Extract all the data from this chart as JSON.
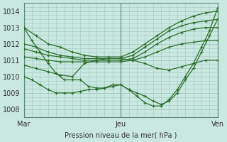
{
  "bg_color": "#c8e8e0",
  "grid_color": "#a0c8c0",
  "line_color": "#2d6e2d",
  "xlabel": "Pression niveau de la mer( hPa )",
  "xtick_labels": [
    "Mar",
    "Jeu",
    "Ven"
  ],
  "xtick_positions": [
    0,
    48,
    96
  ],
  "xlim": [
    0,
    96
  ],
  "ylim": [
    1007.5,
    1014.5
  ],
  "yticks": [
    1008,
    1009,
    1010,
    1011,
    1012,
    1013,
    1014
  ],
  "series": [
    {
      "x": [
        0,
        6,
        12,
        18,
        24,
        30,
        36,
        42,
        48,
        54,
        60,
        66,
        72,
        78,
        84,
        90,
        96
      ],
      "y": [
        1013.0,
        1012.5,
        1012.0,
        1011.8,
        1011.5,
        1011.3,
        1011.2,
        1011.2,
        1011.2,
        1011.5,
        1012.0,
        1012.5,
        1013.0,
        1013.4,
        1013.7,
        1013.9,
        1014.0
      ]
    },
    {
      "x": [
        0,
        6,
        12,
        18,
        24,
        30,
        36,
        42,
        48,
        54,
        60,
        66,
        72,
        78,
        84,
        90,
        96
      ],
      "y": [
        1012.0,
        1011.8,
        1011.5,
        1011.3,
        1011.2,
        1011.1,
        1011.1,
        1011.1,
        1011.1,
        1011.3,
        1011.8,
        1012.3,
        1012.8,
        1013.1,
        1013.3,
        1013.4,
        1013.5
      ]
    },
    {
      "x": [
        0,
        6,
        12,
        18,
        24,
        30,
        36,
        42,
        48,
        54,
        60,
        66,
        72,
        78,
        84,
        90,
        96
      ],
      "y": [
        1011.7,
        1011.5,
        1011.3,
        1011.2,
        1011.1,
        1011.0,
        1011.0,
        1011.0,
        1011.0,
        1011.1,
        1011.5,
        1012.0,
        1012.4,
        1012.7,
        1012.9,
        1013.0,
        1013.0
      ]
    },
    {
      "x": [
        0,
        6,
        12,
        18,
        24,
        30,
        36,
        42,
        48,
        54,
        60,
        66,
        72,
        78,
        84,
        90,
        96
      ],
      "y": [
        1011.2,
        1011.1,
        1011.0,
        1010.9,
        1010.9,
        1010.9,
        1010.9,
        1010.9,
        1010.9,
        1011.0,
        1011.2,
        1011.5,
        1011.8,
        1012.0,
        1012.1,
        1012.2,
        1012.2
      ]
    },
    {
      "x": [
        0,
        6,
        12,
        18,
        24,
        30,
        36,
        42,
        48,
        54,
        60,
        66,
        72,
        78,
        84,
        90,
        96
      ],
      "y": [
        1010.7,
        1010.5,
        1010.3,
        1010.1,
        1010.0,
        1010.8,
        1011.0,
        1011.1,
        1011.1,
        1011.0,
        1010.8,
        1010.5,
        1010.4,
        1010.6,
        1010.8,
        1011.0,
        1011.0
      ]
    },
    {
      "x": [
        0,
        4,
        8,
        12,
        16,
        20,
        24,
        28,
        32,
        36,
        40,
        44,
        48,
        52,
        56,
        60,
        64,
        68,
        72,
        76,
        80,
        84,
        88,
        92,
        96
      ],
      "y": [
        1013.0,
        1012.2,
        1011.5,
        1010.8,
        1010.2,
        1009.8,
        1009.8,
        1009.8,
        1009.4,
        1009.3,
        1009.3,
        1009.5,
        1009.5,
        1009.2,
        1009.0,
        1008.8,
        1008.5,
        1008.3,
        1008.5,
        1009.0,
        1009.8,
        1010.5,
        1011.5,
        1012.5,
        1013.5
      ]
    },
    {
      "x": [
        0,
        4,
        8,
        12,
        16,
        20,
        24,
        28,
        32,
        36,
        40,
        44,
        48,
        52,
        56,
        60,
        64,
        68,
        72,
        76,
        80,
        84,
        88,
        92,
        96
      ],
      "y": [
        1010.0,
        1009.8,
        1009.5,
        1009.2,
        1009.0,
        1009.0,
        1009.0,
        1009.1,
        1009.2,
        1009.2,
        1009.3,
        1009.4,
        1009.5,
        1009.2,
        1008.8,
        1008.4,
        1008.2,
        1008.2,
        1008.6,
        1009.2,
        1010.0,
        1010.8,
        1011.8,
        1012.8,
        1014.2
      ]
    }
  ]
}
